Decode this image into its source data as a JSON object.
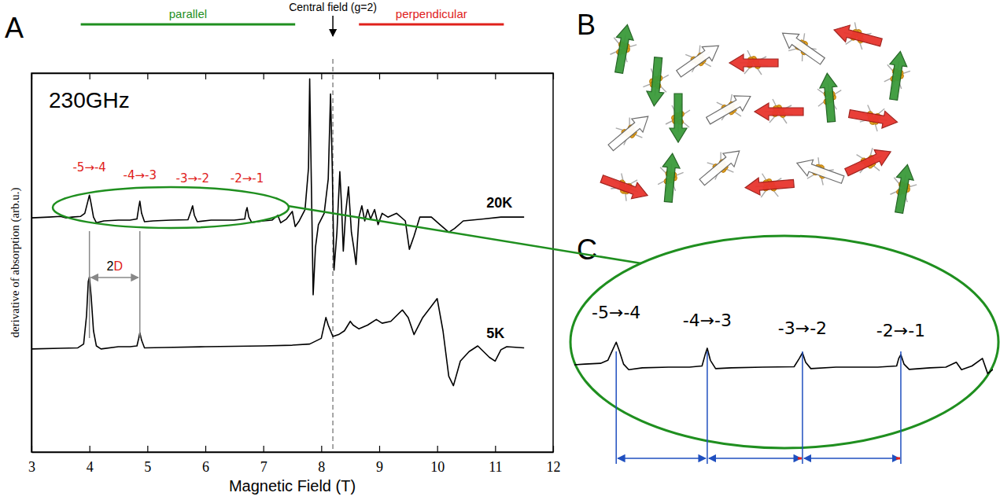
{
  "panels": [
    "A",
    "B",
    "C"
  ],
  "chart_data": {
    "type": "line",
    "x_label": "Magnetic Field (T)",
    "y_label": "derivative of absorption (arb.u.)",
    "xlim": [
      3,
      12
    ],
    "xticks": [
      3,
      4,
      5,
      6,
      7,
      8,
      9,
      10,
      11,
      12
    ],
    "ylim": [
      0,
      10
    ],
    "tick_labels": "x",
    "series": [
      {
        "name": "20K",
        "color": "#000000",
        "x": [
          3.0,
          3.3,
          3.5,
          3.6,
          3.7,
          3.85,
          3.92,
          3.97,
          4.0,
          4.03,
          4.07,
          4.12,
          4.25,
          4.5,
          4.7,
          4.82,
          4.85,
          4.87,
          4.9,
          4.95,
          5.1,
          5.4,
          5.7,
          5.75,
          5.78,
          5.81,
          5.86,
          6.1,
          6.5,
          6.68,
          6.7,
          6.72,
          6.75,
          6.8,
          7.0,
          7.15,
          7.25,
          7.3,
          7.4,
          7.5,
          7.55,
          7.62,
          7.72,
          7.78,
          7.8,
          7.83,
          7.86,
          7.9,
          7.95,
          8.05,
          8.12,
          8.16,
          8.19,
          8.22,
          8.27,
          8.32,
          8.35,
          8.38,
          8.42,
          8.47,
          8.52,
          8.56,
          8.6,
          8.65,
          8.7,
          8.75,
          8.8,
          8.85,
          8.92,
          8.98,
          9.05,
          9.15,
          9.3,
          9.45,
          9.52,
          9.6,
          9.7,
          9.9,
          10.05,
          10.2,
          10.3,
          10.45,
          10.8,
          11.1,
          11.5
        ],
        "values": [
          6.18,
          6.2,
          6.22,
          6.18,
          6.2,
          6.22,
          6.3,
          6.6,
          6.78,
          6.55,
          6.2,
          6.05,
          6.1,
          6.12,
          6.12,
          6.15,
          6.45,
          6.62,
          6.3,
          6.08,
          6.1,
          6.12,
          6.13,
          6.35,
          6.5,
          6.25,
          6.08,
          6.12,
          6.12,
          6.15,
          6.35,
          6.45,
          6.2,
          6.06,
          6.1,
          6.12,
          6.25,
          6.05,
          6.15,
          6.35,
          5.95,
          6.1,
          6.4,
          7.5,
          9.85,
          7.0,
          4.15,
          5.4,
          6.0,
          6.3,
          7.2,
          9.45,
          7.5,
          4.8,
          5.8,
          7.4,
          6.5,
          5.3,
          6.3,
          7.0,
          5.8,
          5.4,
          4.95,
          6.2,
          6.5,
          6.1,
          6.4,
          6.15,
          6.4,
          6.0,
          6.3,
          6.2,
          6.3,
          6.1,
          5.35,
          5.7,
          6.2,
          6.2,
          6.0,
          5.8,
          5.9,
          6.1,
          6.15,
          6.2,
          6.2
        ]
      },
      {
        "name": "5K",
        "color": "#000000",
        "x": [
          3.0,
          3.5,
          3.8,
          3.9,
          3.95,
          3.98,
          4.0,
          4.03,
          4.07,
          4.12,
          4.2,
          4.5,
          4.7,
          4.82,
          4.85,
          4.87,
          4.9,
          4.95,
          5.3,
          6.0,
          7.0,
          7.5,
          7.8,
          8.0,
          8.08,
          8.12,
          8.2,
          8.3,
          8.4,
          8.5,
          8.55,
          8.65,
          8.8,
          8.95,
          9.05,
          9.2,
          9.4,
          9.5,
          9.6,
          9.75,
          9.9,
          10.0,
          10.1,
          10.2,
          10.28,
          10.4,
          10.55,
          10.7,
          10.9,
          11.0,
          11.1,
          11.2,
          11.5
        ],
        "values": [
          2.72,
          2.74,
          2.75,
          2.85,
          3.6,
          4.5,
          4.62,
          4.1,
          3.2,
          2.8,
          2.72,
          2.78,
          2.78,
          2.8,
          3.0,
          3.15,
          2.95,
          2.75,
          2.76,
          2.78,
          2.8,
          2.82,
          2.85,
          3.0,
          3.55,
          3.35,
          3.05,
          3.1,
          3.2,
          3.45,
          3.35,
          3.25,
          3.35,
          3.5,
          3.4,
          3.45,
          3.75,
          3.55,
          3.1,
          3.55,
          3.85,
          4.05,
          3.2,
          2.0,
          1.75,
          2.4,
          2.65,
          2.8,
          2.5,
          2.4,
          2.7,
          2.78,
          2.75
        ]
      }
    ],
    "annotations": {
      "frequency": "230GHz",
      "central_field": {
        "text": "Central field (g=2)",
        "x": 8.2
      },
      "ranges": [
        {
          "text": "parallel",
          "from": 3.85,
          "to": 7.55
        },
        {
          "text": "perpendicular",
          "from": 8.65,
          "to": 11.15
        }
      ],
      "transitions": [
        {
          "text": "-5→-4",
          "x": 4.0
        },
        {
          "text": "-4→-3",
          "x": 4.87
        },
        {
          "text": "-3→-2",
          "x": 5.78
        },
        {
          "text": "-2→-1",
          "x": 6.72
        }
      ],
      "spacing": {
        "text": "2D",
        "from": 4.0,
        "to": 4.87
      }
    },
    "zoom": {
      "xlim": [
        3.6,
        7.6
      ],
      "ylim": [
        4.6,
        8.2
      ]
    }
  }
}
